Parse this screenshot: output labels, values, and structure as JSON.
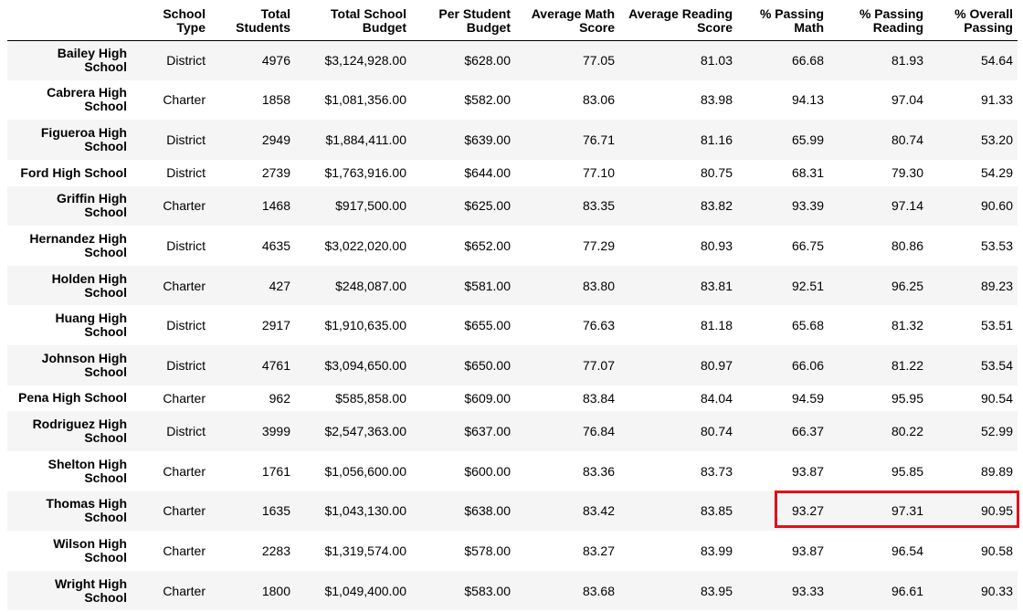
{
  "table": {
    "headers": [
      {
        "line1": "",
        "line2": ""
      },
      {
        "line1": "School",
        "line2": "Type"
      },
      {
        "line1": "Total",
        "line2": "Students"
      },
      {
        "line1": "Total School",
        "line2": "Budget"
      },
      {
        "line1": "Per Student",
        "line2": "Budget"
      },
      {
        "line1": "Average Math",
        "line2": "Score"
      },
      {
        "line1": "Average Reading",
        "line2": "Score"
      },
      {
        "line1": "% Passing",
        "line2": "Math"
      },
      {
        "line1": "% Passing",
        "line2": "Reading"
      },
      {
        "line1": "% Overall",
        "line2": "Passing"
      }
    ],
    "rows": [
      {
        "name1": "Bailey High",
        "name2": "School",
        "type": "District",
        "students": "4976",
        "budget": "$3,124,928.00",
        "per_student": "$628.00",
        "avg_math": "77.05",
        "avg_reading": "81.03",
        "pass_math": "66.68",
        "pass_reading": "81.93",
        "overall": "54.64"
      },
      {
        "name1": "Cabrera High",
        "name2": "School",
        "type": "Charter",
        "students": "1858",
        "budget": "$1,081,356.00",
        "per_student": "$582.00",
        "avg_math": "83.06",
        "avg_reading": "83.98",
        "pass_math": "94.13",
        "pass_reading": "97.04",
        "overall": "91.33"
      },
      {
        "name1": "Figueroa High",
        "name2": "School",
        "type": "District",
        "students": "2949",
        "budget": "$1,884,411.00",
        "per_student": "$639.00",
        "avg_math": "76.71",
        "avg_reading": "81.16",
        "pass_math": "65.99",
        "pass_reading": "80.74",
        "overall": "53.20"
      },
      {
        "name1": "Ford High School",
        "name2": "",
        "type": "District",
        "students": "2739",
        "budget": "$1,763,916.00",
        "per_student": "$644.00",
        "avg_math": "77.10",
        "avg_reading": "80.75",
        "pass_math": "68.31",
        "pass_reading": "79.30",
        "overall": "54.29"
      },
      {
        "name1": "Griffin High",
        "name2": "School",
        "type": "Charter",
        "students": "1468",
        "budget": "$917,500.00",
        "per_student": "$625.00",
        "avg_math": "83.35",
        "avg_reading": "83.82",
        "pass_math": "93.39",
        "pass_reading": "97.14",
        "overall": "90.60"
      },
      {
        "name1": "Hernandez High",
        "name2": "School",
        "type": "District",
        "students": "4635",
        "budget": "$3,022,020.00",
        "per_student": "$652.00",
        "avg_math": "77.29",
        "avg_reading": "80.93",
        "pass_math": "66.75",
        "pass_reading": "80.86",
        "overall": "53.53"
      },
      {
        "name1": "Holden High",
        "name2": "School",
        "type": "Charter",
        "students": "427",
        "budget": "$248,087.00",
        "per_student": "$581.00",
        "avg_math": "83.80",
        "avg_reading": "83.81",
        "pass_math": "92.51",
        "pass_reading": "96.25",
        "overall": "89.23"
      },
      {
        "name1": "Huang High",
        "name2": "School",
        "type": "District",
        "students": "2917",
        "budget": "$1,910,635.00",
        "per_student": "$655.00",
        "avg_math": "76.63",
        "avg_reading": "81.18",
        "pass_math": "65.68",
        "pass_reading": "81.32",
        "overall": "53.51"
      },
      {
        "name1": "Johnson High",
        "name2": "School",
        "type": "District",
        "students": "4761",
        "budget": "$3,094,650.00",
        "per_student": "$650.00",
        "avg_math": "77.07",
        "avg_reading": "80.97",
        "pass_math": "66.06",
        "pass_reading": "81.22",
        "overall": "53.54"
      },
      {
        "name1": "Pena High School",
        "name2": "",
        "type": "Charter",
        "students": "962",
        "budget": "$585,858.00",
        "per_student": "$609.00",
        "avg_math": "83.84",
        "avg_reading": "84.04",
        "pass_math": "94.59",
        "pass_reading": "95.95",
        "overall": "90.54"
      },
      {
        "name1": "Rodriguez High",
        "name2": "School",
        "type": "District",
        "students": "3999",
        "budget": "$2,547,363.00",
        "per_student": "$637.00",
        "avg_math": "76.84",
        "avg_reading": "80.74",
        "pass_math": "66.37",
        "pass_reading": "80.22",
        "overall": "52.99"
      },
      {
        "name1": "Shelton High",
        "name2": "School",
        "type": "Charter",
        "students": "1761",
        "budget": "$1,056,600.00",
        "per_student": "$600.00",
        "avg_math": "83.36",
        "avg_reading": "83.73",
        "pass_math": "93.87",
        "pass_reading": "95.85",
        "overall": "89.89"
      },
      {
        "name1": "Thomas High",
        "name2": "School",
        "type": "Charter",
        "students": "1635",
        "budget": "$1,043,130.00",
        "per_student": "$638.00",
        "avg_math": "83.42",
        "avg_reading": "83.85",
        "pass_math": "93.27",
        "pass_reading": "97.31",
        "overall": "90.95"
      },
      {
        "name1": "Wilson High",
        "name2": "School",
        "type": "Charter",
        "students": "2283",
        "budget": "$1,319,574.00",
        "per_student": "$578.00",
        "avg_math": "83.27",
        "avg_reading": "83.99",
        "pass_math": "93.87",
        "pass_reading": "96.54",
        "overall": "90.58"
      },
      {
        "name1": "Wright High",
        "name2": "School",
        "type": "Charter",
        "students": "1800",
        "budget": "$1,049,400.00",
        "per_student": "$583.00",
        "avg_math": "83.68",
        "avg_reading": "83.95",
        "pass_math": "93.33",
        "pass_reading": "96.61",
        "overall": "90.33"
      }
    ]
  },
  "highlight": {
    "color": "#e0111b"
  }
}
